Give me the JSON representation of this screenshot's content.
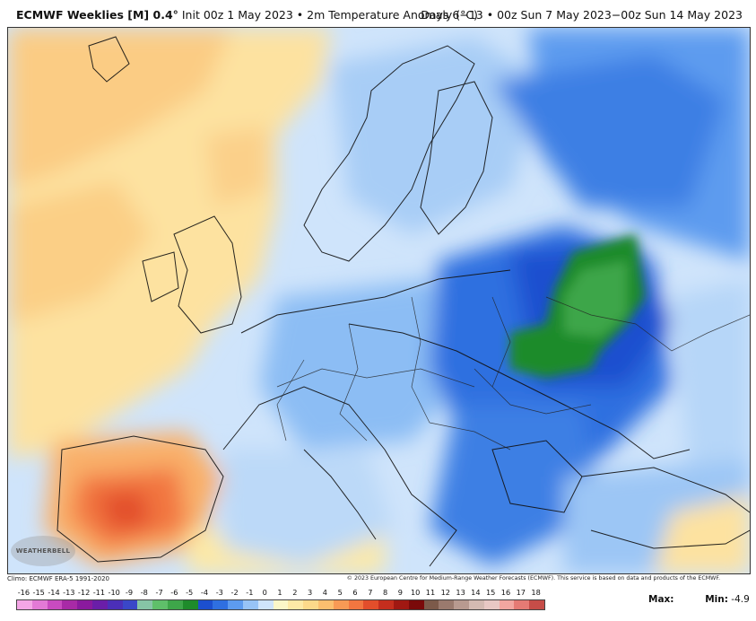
{
  "header": {
    "product": "ECMWF Weeklies [M] 0.4°",
    "run_info": "Init 00z 1 May 2023 • 2m Temperature Anomaly (°C)",
    "valid_period": "Days 6−13 • 00z Sun 7 May 2023−00z Sun 14 May 2023"
  },
  "footer": {
    "climo": "Climo: ECMWF ERA-5 1991-2020",
    "copyright": "© 2023 European Centre for Medium-Range Weather Forecasts (ECMWF). This service is based on data and products of the ECMWF.",
    "logo_text": "WEATHERBELL"
  },
  "colorbar": {
    "labels": [
      "-16",
      "-15",
      "-14",
      "-13",
      "-12",
      "-11",
      "-10",
      "-9",
      "-8",
      "-7",
      "-6",
      "-5",
      "-4",
      "-3",
      "-2",
      "-1",
      "0",
      "1",
      "2",
      "3",
      "4",
      "5",
      "6",
      "7",
      "8",
      "9",
      "10",
      "11",
      "12",
      "13",
      "14",
      "15",
      "16",
      "17",
      "18"
    ],
    "colors": [
      "#f4a6e6",
      "#e37ad6",
      "#c94bc0",
      "#a82aa6",
      "#8a1a9e",
      "#6a1ea8",
      "#4b2fb8",
      "#3a47c8",
      "#86c5a6",
      "#5fbf6a",
      "#3ea64a",
      "#1e8b2b",
      "#1c4fcf",
      "#2f6fe0",
      "#5d9bef",
      "#97c3f6",
      "#cfe4fb",
      "#fbf7c8",
      "#fde9a6",
      "#fcd98a",
      "#fbbf6f",
      "#f89a55",
      "#f27640",
      "#e24e2b",
      "#c52e1e",
      "#a01812",
      "#7a0a0a",
      "#7c5a4a",
      "#9a7a6e",
      "#b89a90",
      "#d4bab2",
      "#e8c8c4",
      "#f2a6a0",
      "#e57a74",
      "#c64d48"
    ]
  },
  "stats": {
    "max_label": "Max:",
    "min_label": "Min:",
    "min_value": "-4.9"
  },
  "icons": {
    "logo": "weatherbell-logo"
  }
}
